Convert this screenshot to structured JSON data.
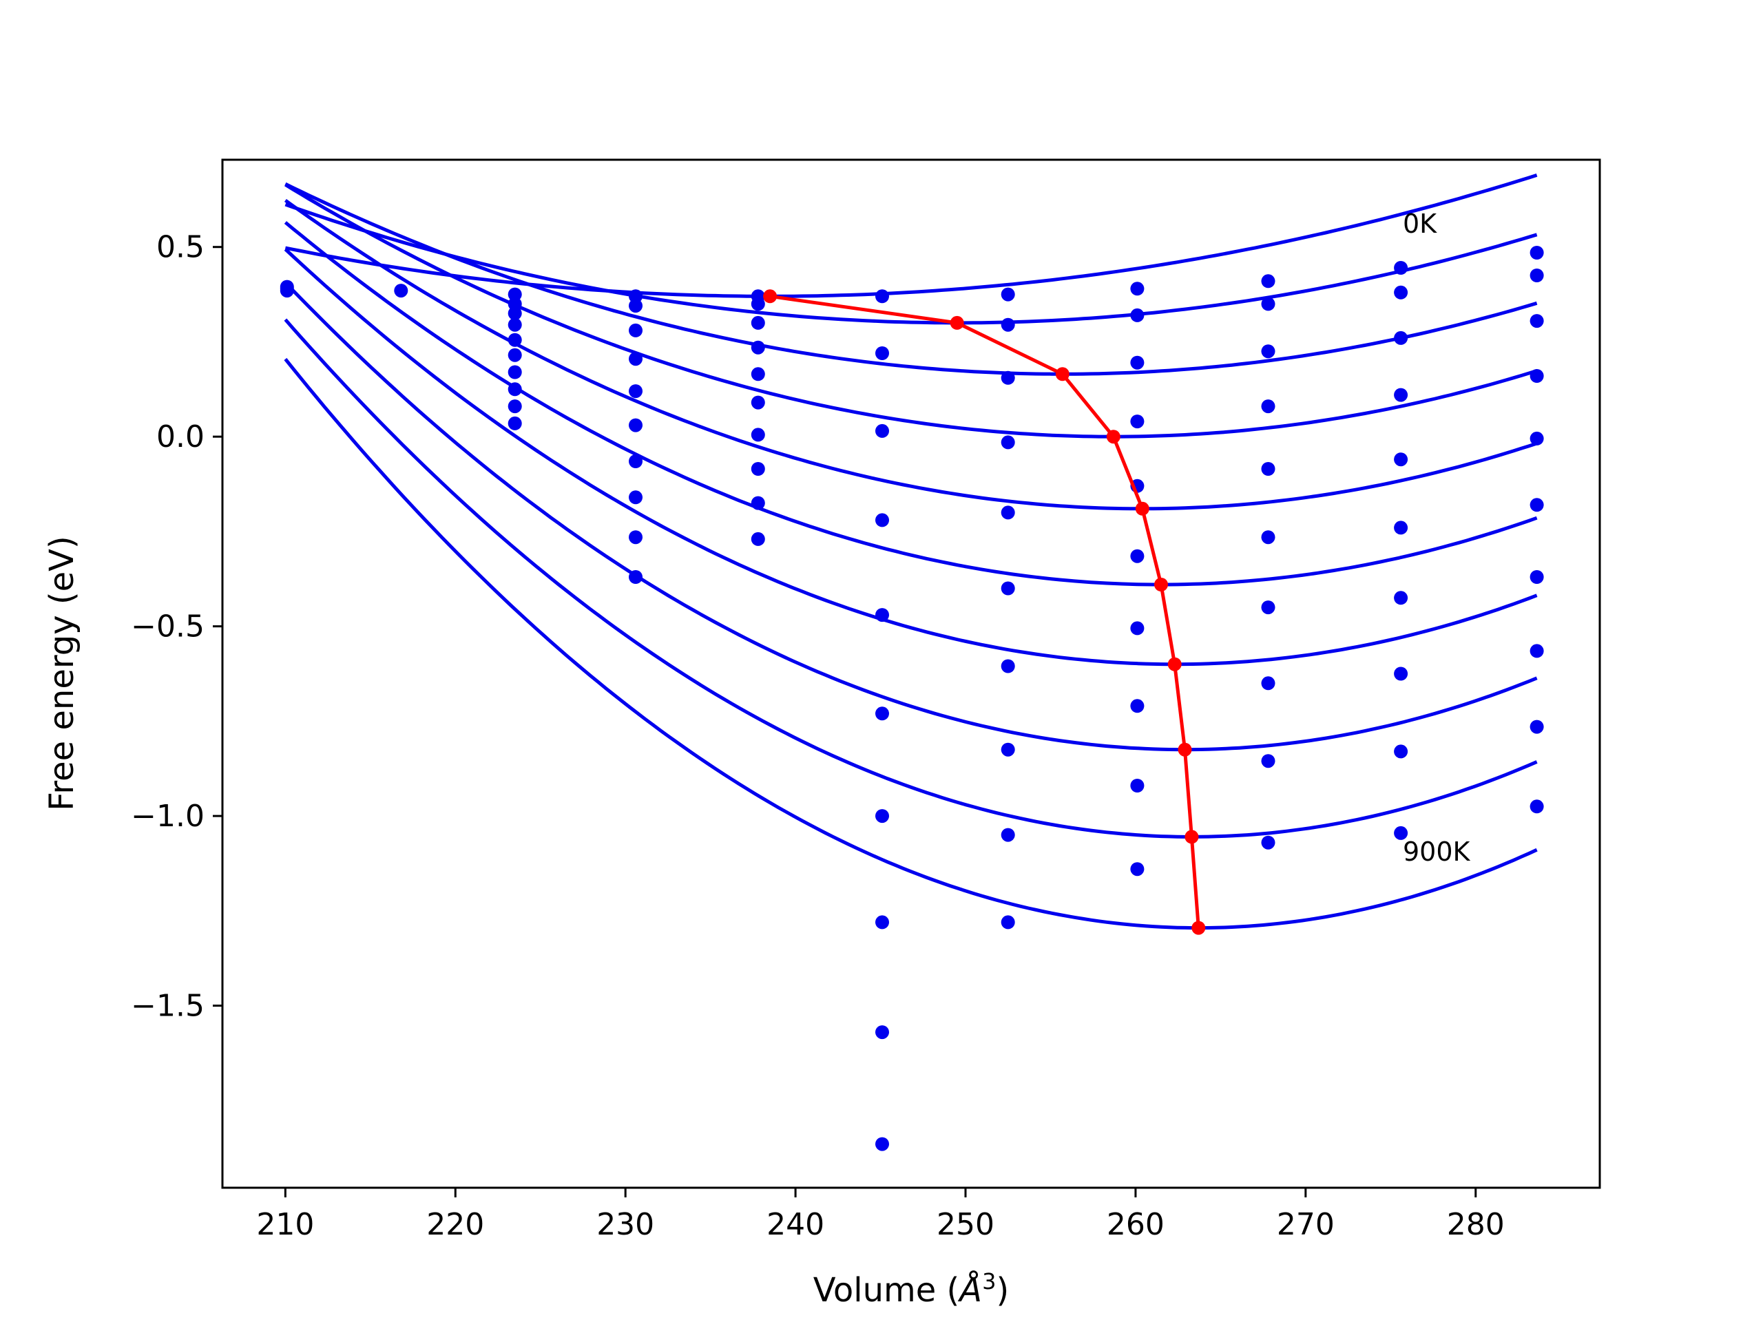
{
  "chart_data": {
    "type": "line",
    "title": "",
    "xlabel_main": "Volume (",
    "xlabel_symbol": "Å",
    "xlabel_power": "3",
    "xlabel_close": ")",
    "ylabel": "Free energy (eV)",
    "xlim": [
      206.3,
      287.3
    ],
    "ylim": [
      -1.98,
      0.73
    ],
    "xticks": [
      210,
      220,
      230,
      240,
      250,
      260,
      270,
      280
    ],
    "yticks": [
      0.5,
      0.0,
      -0.5,
      -1.0,
      -1.5
    ],
    "ytick_labels": [
      "0.5",
      "0.0",
      "−0.5",
      "−1.0",
      "−1.5"
    ],
    "grid": false,
    "annotations": [
      {
        "text": "0K",
        "x": 276,
        "y": 0.55
      },
      {
        "text": "900K",
        "x": 276,
        "y": -1.1
      }
    ],
    "colors": {
      "curves": "#0000ee",
      "points": "#0000ee",
      "minima": "#ff0000"
    },
    "curve_x_range": [
      210,
      283.6
    ],
    "curves": [
      {
        "a": 0.000157,
        "vmin": 238.5,
        "emin": 0.37
      },
      {
        "a": 0.0002,
        "vmin": 249.5,
        "emin": 0.3
      },
      {
        "a": 0.00024,
        "vmin": 255.7,
        "emin": 0.165
      },
      {
        "a": 0.00028,
        "vmin": 258.7,
        "emin": 0.0
      },
      {
        "a": 0.00032,
        "vmin": 260.4,
        "emin": -0.19
      },
      {
        "a": 0.00036,
        "vmin": 261.5,
        "emin": -0.39
      },
      {
        "a": 0.0004,
        "vmin": 262.3,
        "emin": -0.6
      },
      {
        "a": 0.00044,
        "vmin": 262.9,
        "emin": -0.825
      },
      {
        "a": 0.00048,
        "vmin": 263.3,
        "emin": -1.055
      },
      {
        "a": 0.00052,
        "vmin": 263.7,
        "emin": -1.295
      }
    ],
    "points": [
      {
        "x": 210.1,
        "y": [
          0.385,
          0.39,
          0.395
        ]
      },
      {
        "x": 216.8,
        "y": [
          0.385
        ]
      },
      {
        "x": 223.5,
        "y": [
          0.375,
          0.35,
          0.325,
          0.295,
          0.255,
          0.215,
          0.17,
          0.125,
          0.08,
          0.035
        ]
      },
      {
        "x": 230.6,
        "y": [
          0.37,
          0.345,
          0.28,
          0.205,
          0.12,
          0.03,
          -0.065,
          -0.16,
          -0.265,
          -0.37
        ]
      },
      {
        "x": 237.8,
        "y": [
          0.37,
          0.35,
          0.3,
          0.235,
          0.165,
          0.09,
          0.005,
          -0.085,
          -0.175,
          -0.27
        ]
      },
      {
        "x": 245.1,
        "y": [
          0.37,
          0.22,
          0.015,
          -0.22,
          -0.47,
          -0.73,
          -1.0,
          -1.28,
          -1.57,
          -1.865
        ]
      },
      {
        "x": 252.5,
        "y": [
          0.375,
          0.295,
          0.155,
          -0.015,
          -0.2,
          -0.4,
          -0.605,
          -0.825,
          -1.05,
          -1.28
        ]
      },
      {
        "x": 260.1,
        "y": [
          0.39,
          0.32,
          0.195,
          0.04,
          -0.13,
          -0.315,
          -0.505,
          -0.71,
          -0.92,
          -1.14
        ]
      },
      {
        "x": 267.8,
        "y": [
          0.41,
          0.35,
          0.225,
          0.08,
          -0.085,
          -0.265,
          -0.45,
          -0.65,
          -0.855,
          -1.07
        ]
      },
      {
        "x": 275.6,
        "y": [
          0.445,
          0.38,
          0.26,
          0.11,
          -0.06,
          -0.24,
          -0.425,
          -0.625,
          -0.83,
          -1.045
        ]
      },
      {
        "x": 283.6,
        "y": [
          0.485,
          0.425,
          0.305,
          0.16,
          -0.005,
          -0.18,
          -0.37,
          -0.565,
          -0.765,
          -0.975
        ]
      }
    ]
  }
}
